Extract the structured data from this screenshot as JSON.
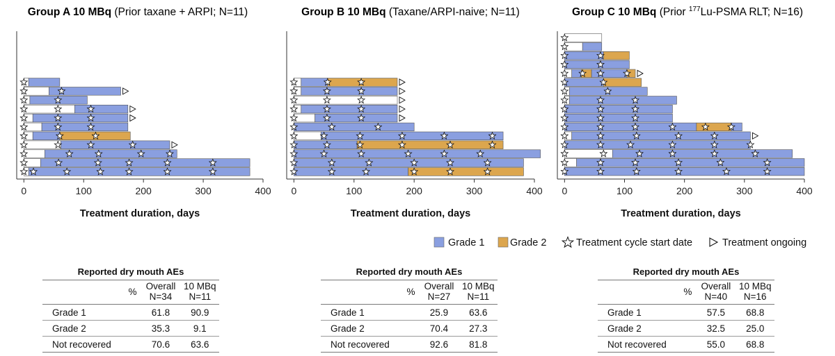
{
  "colors": {
    "grade1": "#8A9FE0",
    "grade2": "#DCA64E",
    "none": "#FFFFFF",
    "ongoing": "#FFFFFF"
  },
  "legend": {
    "grade1": "Grade 1",
    "grade2": "Grade 2",
    "cycle": "Treatment cycle start date",
    "ongoing": "Treatment ongoing"
  },
  "chart_data": [
    {
      "type": "bar",
      "title_bold": "Group A 10 MBq",
      "title_rest": "(Prior taxane + ARPI; N=11)",
      "xlabel": "Treatment duration, days",
      "xlim": [
        -12,
        400
      ],
      "xticks": [
        0,
        100,
        200,
        300,
        400
      ],
      "patients": [
        {
          "segments": [
            [
              0,
              8,
              0
            ],
            [
              8,
              378,
              1
            ]
          ],
          "cycles": [
            0,
            16,
            72,
            128,
            176,
            240,
            316
          ],
          "ongoing": false
        },
        {
          "segments": [
            [
              0,
              28,
              0
            ],
            [
              28,
              378,
              1
            ]
          ],
          "cycles": [
            0,
            58,
            124,
            176,
            240,
            316
          ],
          "ongoing": false
        },
        {
          "segments": [
            [
              0,
              35,
              0
            ],
            [
              35,
              256,
              1
            ]
          ],
          "cycles": [
            0,
            76,
            125,
            196,
            244
          ],
          "ongoing": false
        },
        {
          "segments": [
            [
              0,
              62,
              0
            ],
            [
              62,
              244,
              1
            ]
          ],
          "cycles": [
            0,
            57,
            112,
            182
          ],
          "ongoing": true
        },
        {
          "segments": [
            [
              0,
              15,
              0
            ],
            [
              15,
              60,
              1
            ],
            [
              60,
              178,
              2
            ]
          ],
          "cycles": [
            0,
            60,
            120
          ],
          "ongoing": false
        },
        {
          "segments": [
            [
              0,
              30,
              0
            ],
            [
              30,
              174,
              1
            ]
          ],
          "cycles": [
            0,
            57,
            112
          ],
          "ongoing": false
        },
        {
          "segments": [
            [
              0,
              15,
              0
            ],
            [
              15,
              174,
              1
            ]
          ],
          "cycles": [
            0,
            57,
            112
          ],
          "ongoing": true
        },
        {
          "segments": [
            [
              0,
              85,
              0
            ],
            [
              85,
              174,
              1
            ]
          ],
          "cycles": [
            0,
            57,
            112
          ],
          "ongoing": true
        },
        {
          "segments": [
            [
              0,
              10,
              0
            ],
            [
              10,
              106,
              1
            ]
          ],
          "cycles": [
            0,
            57
          ],
          "ongoing": false
        },
        {
          "segments": [
            [
              0,
              42,
              0
            ],
            [
              42,
              162,
              1
            ]
          ],
          "cycles": [
            0,
            63
          ],
          "ongoing": true
        },
        {
          "segments": [
            [
              0,
              8,
              0
            ],
            [
              8,
              60,
              1
            ]
          ],
          "cycles": [
            0
          ],
          "ongoing": false
        }
      ]
    },
    {
      "type": "bar",
      "title_bold": "Group B 10 MBq",
      "title_rest": "(Taxane/ARPI-naive; N=11)",
      "xlabel": "Treatment duration, days",
      "xlim": [
        -12,
        400
      ],
      "xticks": [
        0,
        100,
        200,
        300,
        400
      ],
      "patients": [
        {
          "segments": [
            [
              0,
              190,
              1
            ],
            [
              190,
              382,
              2
            ]
          ],
          "cycles": [
            0,
            63,
            120,
            200,
            260,
            322
          ],
          "ongoing": false
        },
        {
          "segments": [
            [
              0,
              382,
              1
            ]
          ],
          "cycles": [
            0,
            63,
            125,
            200,
            260,
            322
          ],
          "ongoing": false
        },
        {
          "segments": [
            [
              0,
              410,
              1
            ]
          ],
          "cycles": [
            0,
            50,
            112,
            190,
            250,
            310
          ],
          "ongoing": false
        },
        {
          "segments": [
            [
              0,
              105,
              1
            ],
            [
              105,
              348,
              2
            ]
          ],
          "cycles": [
            0,
            55,
            110,
            180,
            260,
            330
          ],
          "ongoing": false
        },
        {
          "segments": [
            [
              0,
              45,
              0
            ],
            [
              45,
              348,
              1
            ]
          ],
          "cycles": [
            0,
            50,
            110,
            180,
            250,
            330
          ],
          "ongoing": false
        },
        {
          "segments": [
            [
              0,
              200,
              1
            ]
          ],
          "cycles": [
            0,
            63,
            140
          ],
          "ongoing": false
        },
        {
          "segments": [
            [
              0,
              35,
              0
            ],
            [
              35,
              172,
              1
            ]
          ],
          "cycles": [
            0,
            55,
            112
          ],
          "ongoing": true
        },
        {
          "segments": [
            [
              0,
              12,
              0
            ],
            [
              12,
              172,
              1
            ]
          ],
          "cycles": [
            0,
            55,
            112
          ],
          "ongoing": true
        },
        {
          "segments": [
            [
              0,
              172,
              0
            ]
          ],
          "cycles": [
            0,
            55,
            112
          ],
          "ongoing": true
        },
        {
          "segments": [
            [
              0,
              12,
              0
            ],
            [
              12,
              172,
              1
            ]
          ],
          "cycles": [
            0,
            55,
            112
          ],
          "ongoing": true
        },
        {
          "segments": [
            [
              0,
              12,
              0
            ],
            [
              12,
              56,
              1
            ],
            [
              56,
              172,
              2
            ]
          ],
          "cycles": [
            0,
            56,
            112
          ],
          "ongoing": true
        }
      ]
    },
    {
      "type": "bar",
      "title_bold": "Group C 10 MBq",
      "title_rest_pre": "(Prior ",
      "title_sup": "177",
      "title_rest_post": "Lu-PSMA RLT; N=16)",
      "xlabel": "Treatment duration, days",
      "xlim": [
        -12,
        400
      ],
      "xticks": [
        0,
        100,
        200,
        300,
        400
      ],
      "patients": [
        {
          "segments": [
            [
              0,
              400,
              1
            ]
          ],
          "cycles": [
            0,
            60,
            120,
            190,
            270,
            338
          ],
          "ongoing": false
        },
        {
          "segments": [
            [
              0,
              20,
              0
            ],
            [
              20,
              400,
              1
            ]
          ],
          "cycles": [
            0,
            60,
            118,
            190,
            260,
            338
          ],
          "ongoing": false
        },
        {
          "segments": [
            [
              0,
              80,
              0
            ],
            [
              80,
              380,
              1
            ]
          ],
          "cycles": [
            0,
            65,
            125,
            180,
            250,
            318
          ],
          "ongoing": false
        },
        {
          "segments": [
            [
              0,
              310,
              1
            ]
          ],
          "cycles": [
            0,
            60,
            110,
            180,
            250,
            310
          ],
          "ongoing": false
        },
        {
          "segments": [
            [
              0,
              12,
              0
            ],
            [
              12,
              310,
              1
            ]
          ],
          "cycles": [
            0,
            60,
            120,
            190,
            250
          ],
          "ongoing": true
        },
        {
          "segments": [
            [
              0,
              220,
              1
            ],
            [
              220,
              278,
              2
            ],
            [
              278,
              296,
              1
            ]
          ],
          "cycles": [
            0,
            60,
            118,
            180,
            235,
            278
          ],
          "ongoing": false
        },
        {
          "segments": [
            [
              0,
              180,
              1
            ]
          ],
          "cycles": [
            0,
            60,
            118
          ],
          "ongoing": false
        },
        {
          "segments": [
            [
              0,
              180,
              1
            ]
          ],
          "cycles": [
            0,
            60,
            118
          ],
          "ongoing": false
        },
        {
          "segments": [
            [
              0,
              8,
              0
            ],
            [
              8,
              187,
              1
            ]
          ],
          "cycles": [
            0,
            60,
            118
          ],
          "ongoing": false
        },
        {
          "segments": [
            [
              0,
              8,
              0
            ],
            [
              8,
              138,
              1
            ]
          ],
          "cycles": [
            0,
            72
          ],
          "ongoing": false
        },
        {
          "segments": [
            [
              0,
              65,
              1
            ],
            [
              65,
              128,
              2
            ]
          ],
          "cycles": [
            0,
            65
          ],
          "ongoing": false
        },
        {
          "segments": [
            [
              0,
              12,
              0
            ],
            [
              12,
              28,
              1
            ],
            [
              28,
              45,
              2
            ],
            [
              45,
              104,
              1
            ],
            [
              104,
              118,
              2
            ]
          ],
          "cycles": [
            0,
            30,
            60,
            104
          ],
          "ongoing": true
        },
        {
          "segments": [
            [
              0,
              108,
              1
            ]
          ],
          "cycles": [
            0,
            60
          ],
          "ongoing": false
        },
        {
          "segments": [
            [
              0,
              65,
              1
            ],
            [
              65,
              108,
              2
            ]
          ],
          "cycles": [
            0,
            60
          ],
          "ongoing": false
        },
        {
          "segments": [
            [
              0,
              30,
              0
            ],
            [
              30,
              62,
              1
            ]
          ],
          "cycles": [
            0
          ],
          "ongoing": false
        },
        {
          "segments": [
            [
              0,
              62,
              0
            ]
          ],
          "cycles": [
            0
          ],
          "ongoing": false
        }
      ]
    }
  ],
  "tables": [
    {
      "title": "Reported dry mouth AEs",
      "header": {
        "pct": "%",
        "overall": "Overall",
        "overall_n": "N=34",
        "dose": "10 MBq",
        "dose_n": "N=11"
      },
      "rows": [
        {
          "label": "Grade 1",
          "overall": "61.8",
          "dose": "90.9"
        },
        {
          "label": "Grade 2",
          "overall": "35.3",
          "dose": "9.1"
        },
        {
          "label": "Not recovered",
          "overall": "70.6",
          "dose": "63.6"
        }
      ]
    },
    {
      "title": "Reported dry mouth AEs",
      "header": {
        "pct": "%",
        "overall": "Overall",
        "overall_n": "N=27",
        "dose": "10 MBq",
        "dose_n": "N=11"
      },
      "rows": [
        {
          "label": "Grade 1",
          "overall": "25.9",
          "dose": "63.6"
        },
        {
          "label": "Grade 2",
          "overall": "70.4",
          "dose": "27.3"
        },
        {
          "label": "Not recovered",
          "overall": "92.6",
          "dose": "81.8"
        }
      ]
    },
    {
      "title": "Reported dry mouth AEs",
      "header": {
        "pct": "%",
        "overall": "Overall",
        "overall_n": "N=40",
        "dose": "10 MBq",
        "dose_n": "N=16"
      },
      "rows": [
        {
          "label": "Grade 1",
          "overall": "57.5",
          "dose": "68.8"
        },
        {
          "label": "Grade 2",
          "overall": "32.5",
          "dose": "25.0"
        },
        {
          "label": "Not recovered",
          "overall": "55.0",
          "dose": "68.8"
        }
      ]
    }
  ]
}
